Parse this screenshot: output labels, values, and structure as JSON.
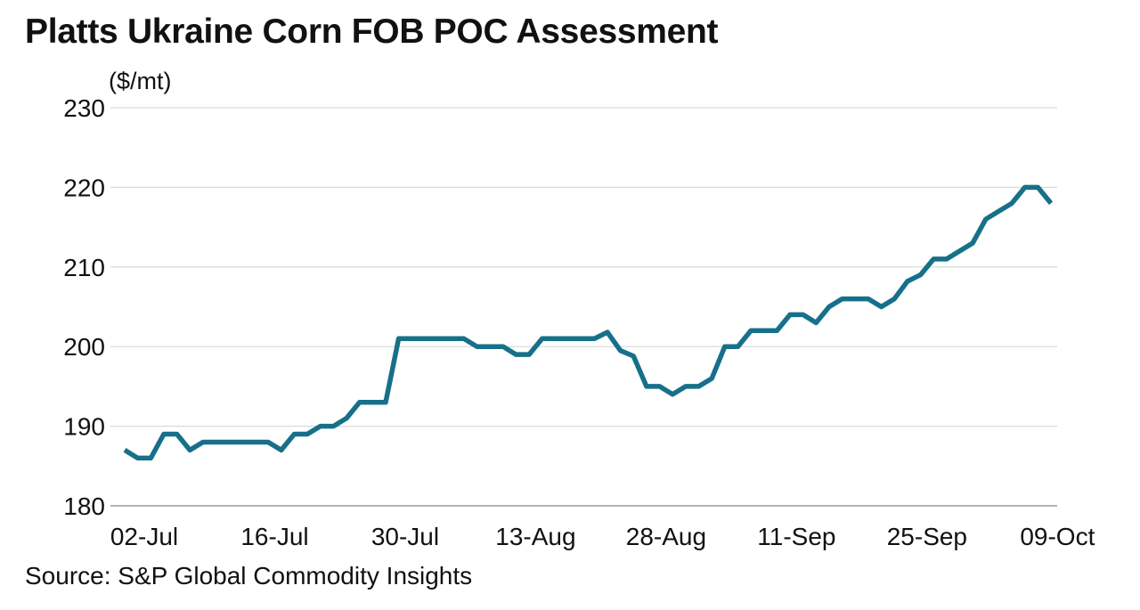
{
  "chart_data": {
    "type": "line",
    "title": "Platts Ukraine Corn FOB POC Assessment",
    "unit_label": "($/mt)",
    "source": "Source: S&P Global Commodity Insights",
    "ylim": [
      180,
      230
    ],
    "yticks": [
      180,
      190,
      200,
      210,
      220,
      230
    ],
    "xtick_labels": [
      "02-Jul",
      "16-Jul",
      "30-Jul",
      "13-Aug",
      "28-Aug",
      "11-Sep",
      "25-Sep",
      "09-Oct"
    ],
    "xtick_index": [
      0,
      10,
      20,
      30,
      40,
      50,
      60,
      70
    ],
    "grid": "horizontal",
    "line_color": "#17708a",
    "series": [
      {
        "values": [
          187,
          186,
          186,
          189,
          189,
          187,
          188,
          188,
          188,
          188,
          188,
          188,
          187,
          189,
          189,
          190,
          190,
          191,
          193,
          193,
          193,
          201,
          201,
          201,
          201,
          201,
          201,
          200,
          200,
          200,
          199,
          199,
          201,
          201,
          201,
          201,
          201,
          201.8,
          199.5,
          198.8,
          195,
          195,
          194,
          195,
          195,
          196,
          200,
          200,
          202,
          202,
          202,
          204,
          204,
          203,
          205,
          206,
          206,
          206,
          205,
          206,
          208.2,
          209,
          211,
          211,
          212,
          213,
          216,
          217,
          218,
          220,
          220,
          218
        ]
      }
    ]
  }
}
